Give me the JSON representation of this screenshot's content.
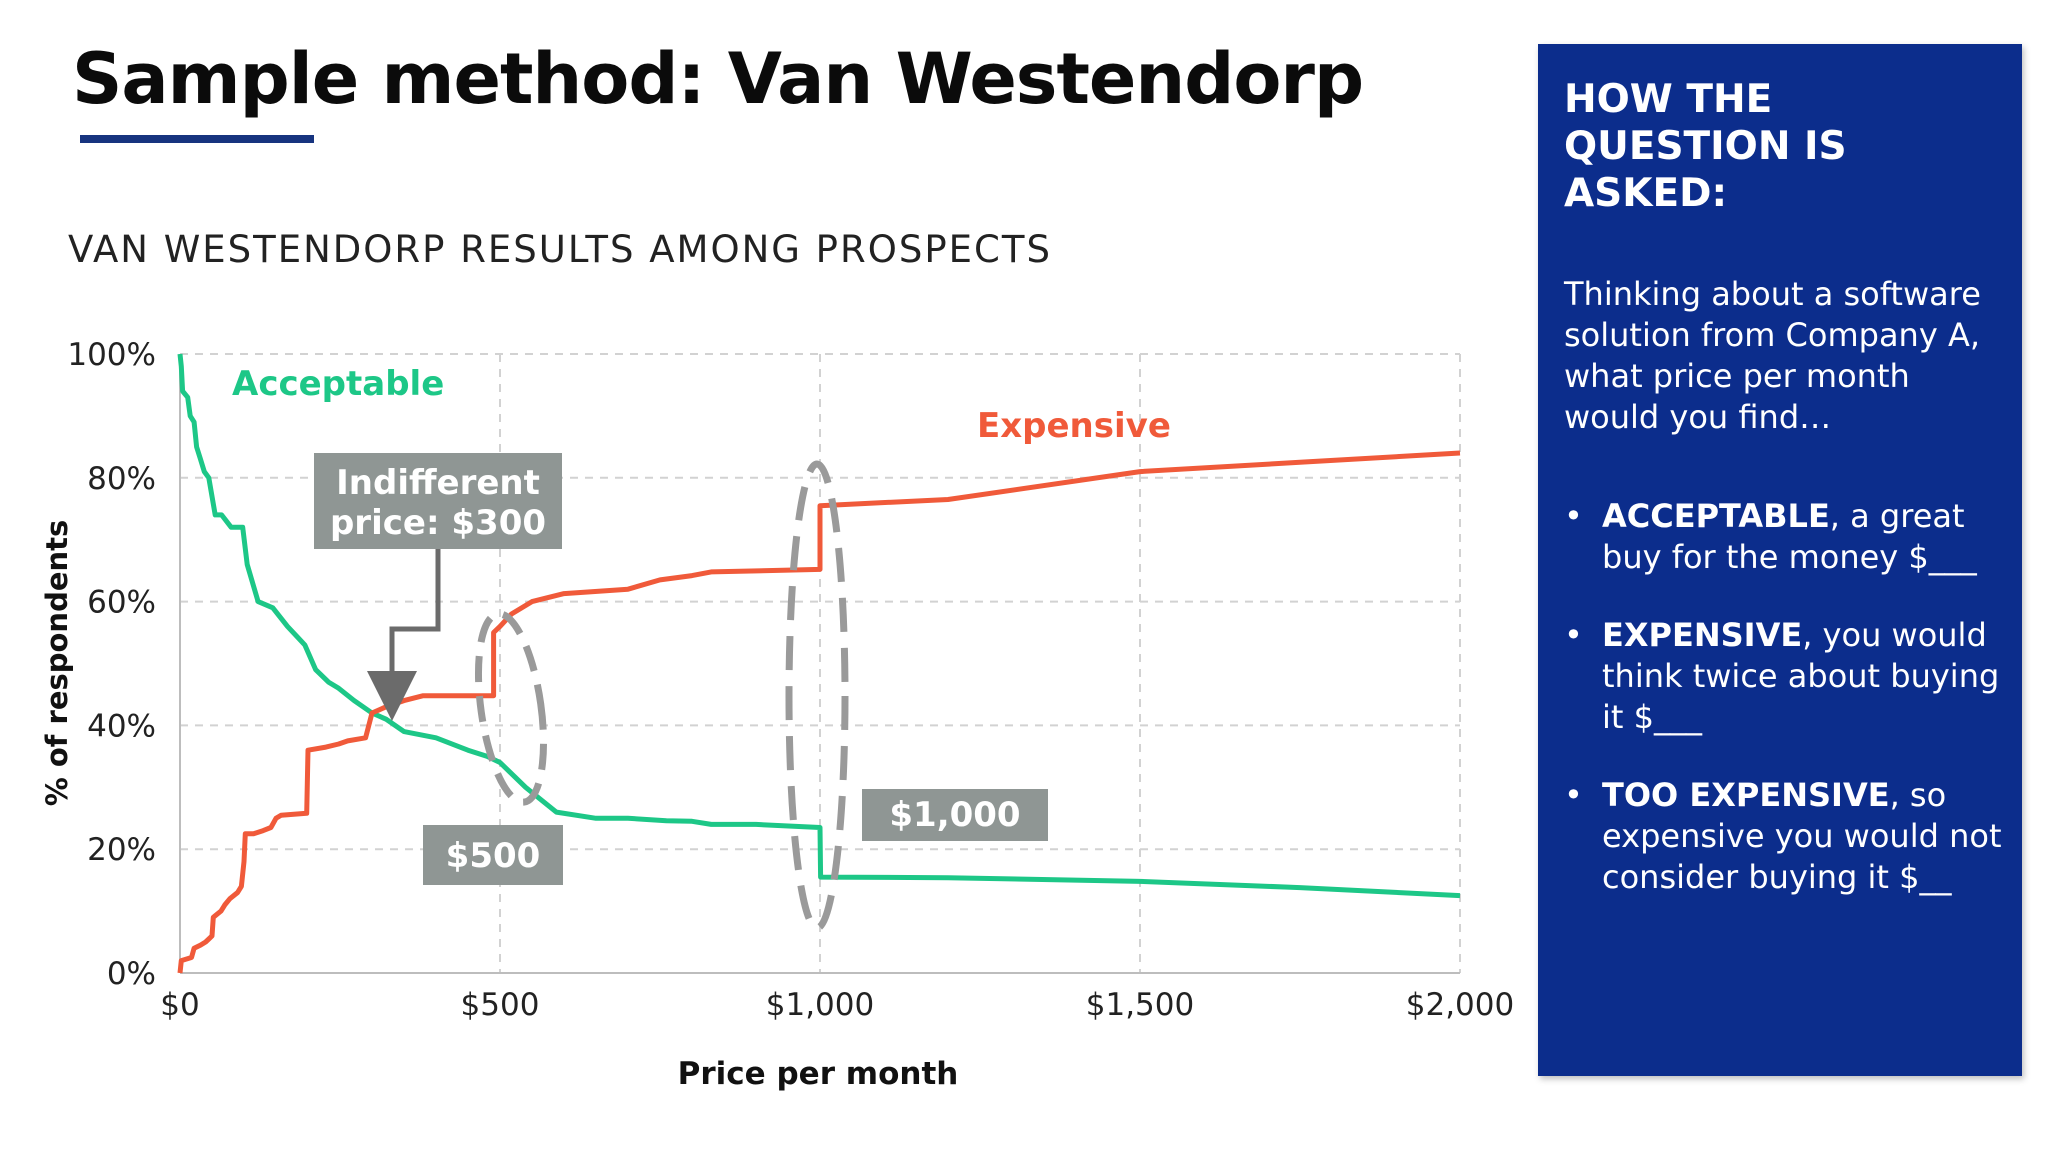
{
  "slide": {
    "title": "Sample method: Van Westendorp",
    "chart_heading": "VAN WESTENDORP RESULTS AMONG PROSPECTS"
  },
  "panel": {
    "heading": "HOW THE QUESTION IS ASKED:",
    "intro": "Thinking about a software solution from Company A, what price per month would you find…",
    "items": [
      {
        "term": "ACCEPTABLE",
        "rest": ", a great buy for the money  $___"
      },
      {
        "term": "EXPENSIVE",
        "rest": ", you would think twice about buying it  $___"
      },
      {
        "term": "TOO EXPENSIVE",
        "rest": ", so expensive you would not consider buying it $__"
      }
    ],
    "background": "#0c2d8c"
  },
  "chart_data": {
    "type": "line",
    "title": "VAN WESTENDORP RESULTS AMONG PROSPECTS",
    "xlabel": "Price per month",
    "ylabel": "% of respondents",
    "xlim": [
      0,
      2000
    ],
    "ylim": [
      0,
      100
    ],
    "x_ticks": [
      0,
      500,
      1000,
      1500,
      2000
    ],
    "x_tick_labels": [
      "$0",
      "$500",
      "$1,000",
      "$1,500",
      "$2,000"
    ],
    "y_ticks": [
      0,
      20,
      40,
      60,
      80,
      100
    ],
    "y_tick_labels": [
      "0%",
      "20%",
      "40%",
      "60%",
      "80%",
      "100%"
    ],
    "grid": true,
    "series": [
      {
        "name": "Acceptable",
        "color": "#1dc787",
        "points": [
          [
            0,
            100
          ],
          [
            2,
            98
          ],
          [
            4,
            94
          ],
          [
            12,
            93
          ],
          [
            16,
            90
          ],
          [
            22,
            89
          ],
          [
            26,
            85
          ],
          [
            32,
            83
          ],
          [
            38,
            81
          ],
          [
            45,
            80
          ],
          [
            55,
            74
          ],
          [
            65,
            74
          ],
          [
            80,
            72
          ],
          [
            98,
            72
          ],
          [
            105,
            66
          ],
          [
            122,
            60
          ],
          [
            145,
            59
          ],
          [
            168,
            56
          ],
          [
            195,
            53
          ],
          [
            212,
            49
          ],
          [
            232,
            47
          ],
          [
            248,
            46
          ],
          [
            272,
            44
          ],
          [
            300,
            42
          ],
          [
            322,
            41
          ],
          [
            350,
            39
          ],
          [
            400,
            38
          ],
          [
            450,
            36
          ],
          [
            480,
            35
          ],
          [
            500,
            34
          ],
          [
            540,
            30
          ],
          [
            588,
            26
          ],
          [
            650,
            25
          ],
          [
            700,
            25
          ],
          [
            760,
            24.6
          ],
          [
            800,
            24.5
          ],
          [
            830,
            24
          ],
          [
            900,
            24
          ],
          [
            1000,
            23.5
          ],
          [
            1001,
            15.5
          ],
          [
            1200,
            15.4
          ],
          [
            1500,
            14.8
          ],
          [
            1750,
            13.8
          ],
          [
            2000,
            12.5
          ]
        ]
      },
      {
        "name": "Expensive",
        "color": "#f05a3a",
        "points": [
          [
            0,
            0
          ],
          [
            2,
            2
          ],
          [
            18,
            2.5
          ],
          [
            22,
            4
          ],
          [
            32,
            4.5
          ],
          [
            40,
            5
          ],
          [
            45,
            5.5
          ],
          [
            50,
            6
          ],
          [
            52,
            9
          ],
          [
            58,
            9.5
          ],
          [
            64,
            10
          ],
          [
            70,
            11
          ],
          [
            78,
            12
          ],
          [
            90,
            13
          ],
          [
            96,
            14
          ],
          [
            100,
            18
          ],
          [
            102,
            22.5
          ],
          [
            115,
            22.5
          ],
          [
            130,
            23
          ],
          [
            142,
            23.5
          ],
          [
            150,
            25
          ],
          [
            158,
            25.5
          ],
          [
            198,
            25.8
          ],
          [
            200,
            36
          ],
          [
            228,
            36.5
          ],
          [
            248,
            37
          ],
          [
            262,
            37.5
          ],
          [
            290,
            38
          ],
          [
            300,
            42
          ],
          [
            322,
            43
          ],
          [
            350,
            44
          ],
          [
            380,
            44.8
          ],
          [
            410,
            44.8
          ],
          [
            449,
            44.8
          ],
          [
            490,
            44.8
          ],
          [
            490,
            55
          ],
          [
            500,
            56
          ],
          [
            518,
            58
          ],
          [
            550,
            60
          ],
          [
            600,
            61.3
          ],
          [
            700,
            62
          ],
          [
            750,
            63.5
          ],
          [
            800,
            64.2
          ],
          [
            830,
            64.8
          ],
          [
            1000,
            65.2
          ],
          [
            1000,
            75.5
          ],
          [
            1200,
            76.5
          ],
          [
            1500,
            81
          ],
          [
            1750,
            82.5
          ],
          [
            2000,
            84
          ]
        ]
      }
    ],
    "annotations": [
      {
        "text": "Acceptable",
        "type": "series-label"
      },
      {
        "text": "Expensive",
        "type": "series-label"
      },
      {
        "text": "Indifferent price: $300",
        "lines": [
          "Indifferent",
          "price: $300"
        ],
        "x": 300,
        "y": 42
      },
      {
        "text": "$500",
        "x": 500,
        "y": 35
      },
      {
        "text": "$1,000",
        "x": 1000,
        "y": 70
      }
    ]
  }
}
